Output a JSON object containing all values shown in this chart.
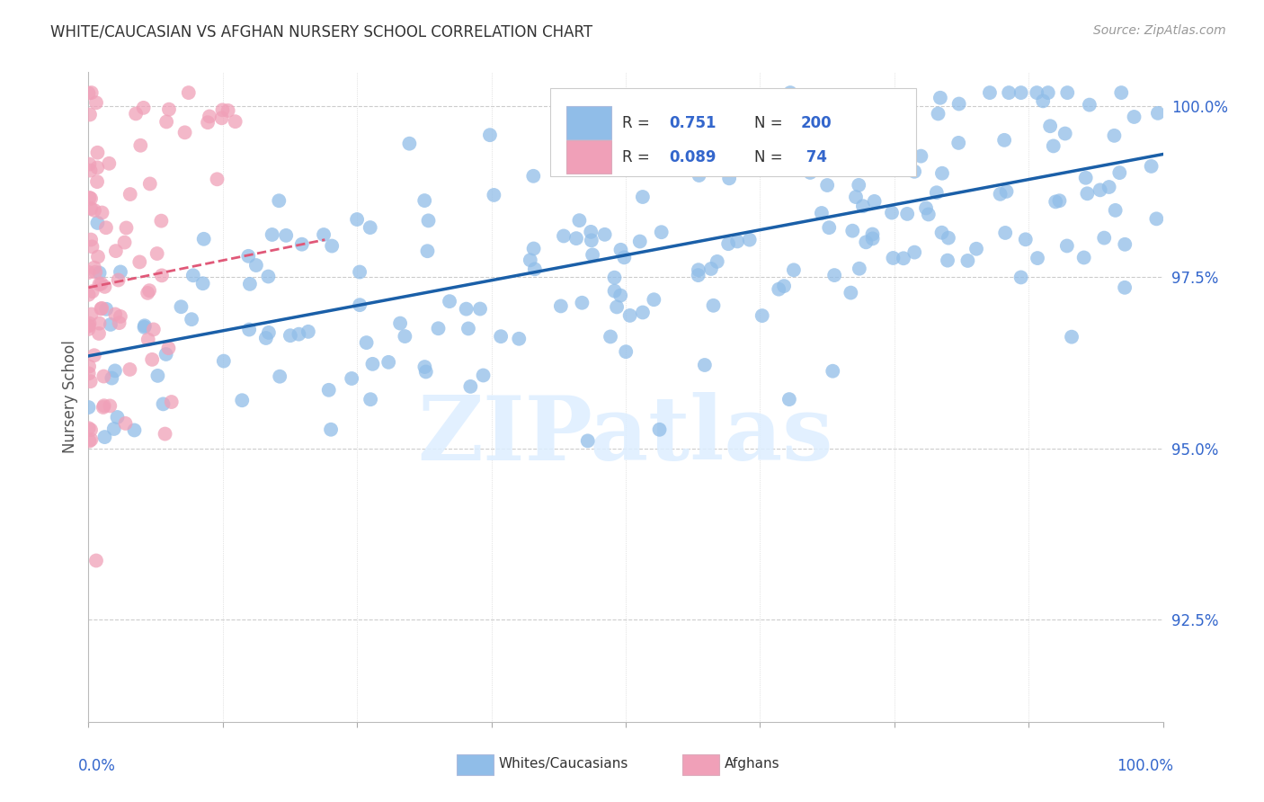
{
  "title": "WHITE/CAUCASIAN VS AFGHAN NURSERY SCHOOL CORRELATION CHART",
  "source": "Source: ZipAtlas.com",
  "ylabel": "Nursery School",
  "watermark": "ZIPatlas",
  "ytick_labels": [
    "92.5%",
    "95.0%",
    "97.5%",
    "100.0%"
  ],
  "ytick_values": [
    0.925,
    0.95,
    0.975,
    1.0
  ],
  "blue_R": 0.751,
  "blue_N": 200,
  "pink_R": 0.089,
  "pink_N": 74,
  "blue_scatter_color": "#90bde8",
  "pink_scatter_color": "#f0a0b8",
  "blue_line_color": "#1a5fa8",
  "pink_line_color": "#e05878",
  "legend_text_color": "#3366cc",
  "legend_RN_color": "#3366cc",
  "title_color": "#333333",
  "grid_color": "#cccccc",
  "right_label_color": "#3366cc",
  "bottom_label_color": "#3366cc",
  "background_color": "#ffffff",
  "x_range": [
    0.0,
    1.0
  ],
  "y_range": [
    0.91,
    1.005
  ],
  "blue_line_start_y": 0.9635,
  "blue_line_end_y": 0.993,
  "pink_line_start_x": 0.0,
  "pink_line_start_y": 0.9735,
  "pink_line_end_x": 0.22,
  "pink_line_end_y": 0.9805
}
